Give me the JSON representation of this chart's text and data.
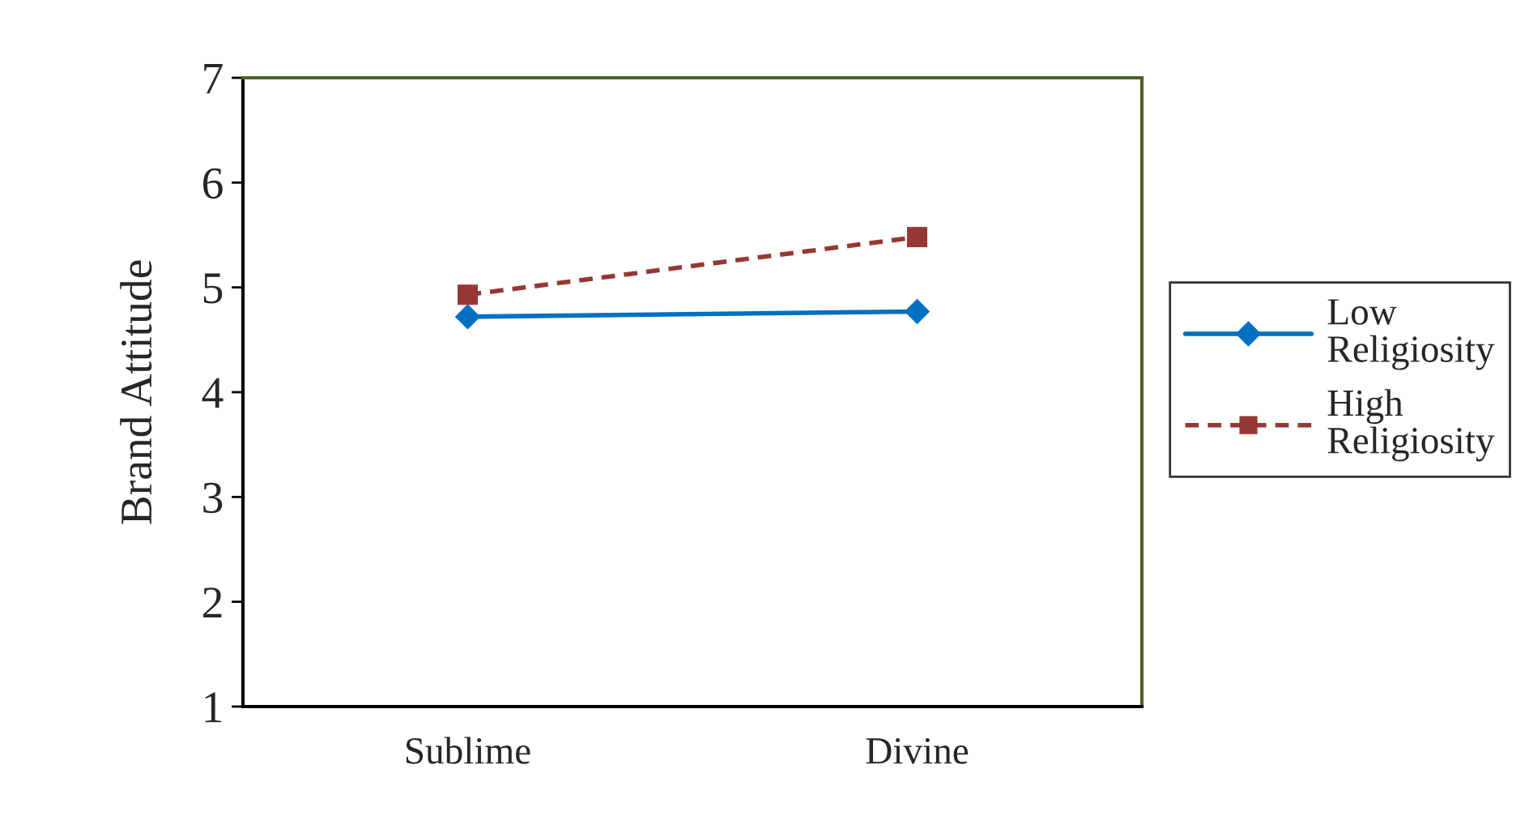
{
  "chart_data": {
    "type": "line",
    "ylabel": "Brand Attitude",
    "categories": [
      "Sublime",
      "Divine"
    ],
    "series": [
      {
        "name": "Low Religiosity",
        "color": "#0070c0",
        "values": [
          4.72,
          4.77
        ],
        "marker": "diamond",
        "line_style": "solid"
      },
      {
        "name": "High Religiosity",
        "color": "#953735",
        "values": [
          4.93,
          5.48
        ],
        "marker": "square",
        "line_style": "dashed"
      }
    ],
    "ylim": [
      1,
      7
    ],
    "yticks": [
      1,
      2,
      3,
      4,
      5,
      6,
      7
    ],
    "grid": false,
    "legend": "right"
  }
}
